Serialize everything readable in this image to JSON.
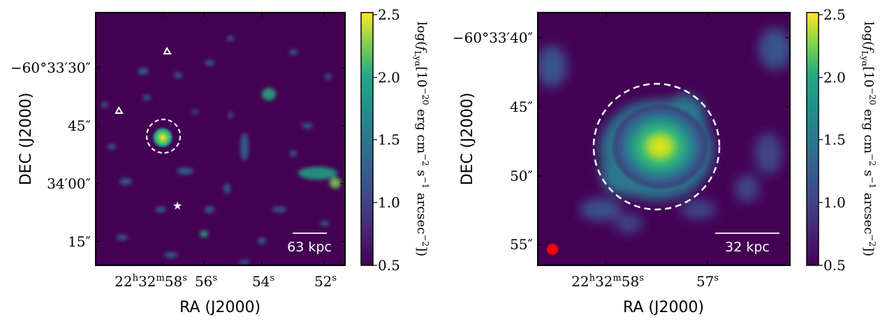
{
  "chart_data": [
    {
      "type": "heatmap",
      "title": "",
      "xlabel": "RA (J2000)",
      "ylabel": "DEC (J2000)",
      "x_ticks": [
        {
          "main": "22",
          "sup1": "h",
          "mid": "32",
          "sup2": "m",
          "end": "58",
          "sup3": "s"
        },
        {
          "main": "56",
          "sup1": "s"
        },
        {
          "main": "54",
          "sup1": "s"
        },
        {
          "main": "52",
          "sup1": "s"
        }
      ],
      "y_ticks": [
        "−60°33′30″",
        "45″",
        "34′00″",
        "15″"
      ],
      "colorbar": {
        "label": "log(f_Lyα[10^−20 erg cm^−2 s^−1 arcsec^−2])",
        "label_parts": {
          "a": "log(",
          "b": "f",
          "sub": "Lyα",
          "c": "[10",
          "sup1": "−20",
          "d": " erg cm",
          "sup2": "−2",
          "e": " s",
          "sup3": "−1",
          "f": " arcsec",
          "sup4": "−2",
          "g": "])"
        },
        "ticks": [
          "0.5",
          "1.0",
          "1.5",
          "2.0",
          "2.5"
        ],
        "range": [
          0.5,
          2.5
        ],
        "colormap": "viridis"
      },
      "scale_bar": "63 kpc",
      "markers": [
        {
          "kind": "triangle",
          "name": "triangle-marker"
        },
        {
          "kind": "triangle",
          "name": "triangle-marker"
        },
        {
          "kind": "star",
          "name": "star-marker"
        },
        {
          "kind": "dashed-circle",
          "name": "aperture-circle"
        }
      ],
      "colors": {
        "background": "#440154",
        "marker": "#ffffff"
      }
    },
    {
      "type": "heatmap",
      "title": "",
      "xlabel": "RA (J2000)",
      "ylabel": "DEC (J2000)",
      "x_ticks": [
        {
          "main": "22",
          "sup1": "h",
          "mid": "32",
          "sup2": "m",
          "end": "58",
          "sup3": "s"
        },
        {
          "main": "57",
          "sup1": "s"
        }
      ],
      "y_ticks": [
        "−60°33′40″",
        "45″",
        "50″",
        "55″"
      ],
      "colorbar": {
        "label": "log(f_Lyα[10^−20 erg cm^−2 s^−1 arcsec^−2])",
        "ticks": [
          "0.5",
          "1.0",
          "1.5",
          "2.0",
          "2.5"
        ],
        "range": [
          0.5,
          2.5
        ],
        "colormap": "viridis"
      },
      "scale_bar": "32 kpc",
      "markers": [
        {
          "kind": "dashed-circle",
          "name": "aperture-circle"
        },
        {
          "kind": "filled-circle",
          "name": "psf-beam",
          "color": "#ff0000"
        }
      ],
      "colors": {
        "background": "#440154",
        "beam": "#ff0000"
      }
    }
  ]
}
